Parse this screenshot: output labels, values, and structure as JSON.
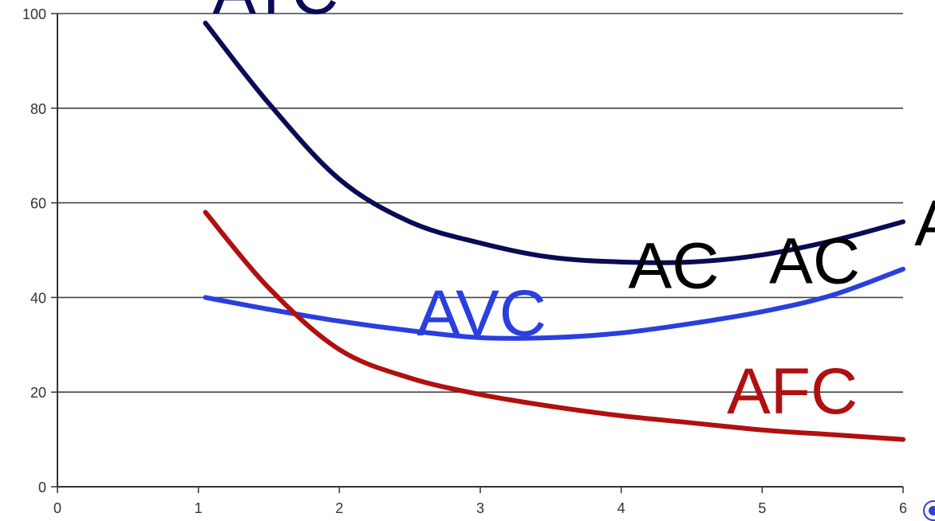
{
  "chart_data": {
    "type": "line",
    "title": "",
    "xlabel": "",
    "ylabel": "",
    "xlim": [
      0,
      6
    ],
    "ylim": [
      0,
      100
    ],
    "x_ticks": [
      "0",
      "1",
      "2",
      "3",
      "4",
      "5",
      "6"
    ],
    "y_ticks": [
      "0",
      "20",
      "40",
      "60",
      "80",
      "100"
    ],
    "grid": true,
    "series": [
      {
        "name": "ATC",
        "color": "#0a0a55",
        "x": [
          1.05,
          1.5,
          2.0,
          2.5,
          3.0,
          3.5,
          4.0,
          4.5,
          5.0,
          5.5,
          6.0
        ],
        "y": [
          98,
          81,
          65,
          56,
          51.5,
          48.5,
          47.5,
          47.5,
          49,
          52,
          56
        ]
      },
      {
        "name": "AVC",
        "color": "#2a3fdd",
        "x": [
          1.05,
          1.5,
          2.0,
          2.5,
          3.0,
          3.5,
          4.0,
          4.5,
          5.0,
          5.5,
          6.0
        ],
        "y": [
          40,
          37.5,
          35,
          33,
          31.5,
          31.5,
          32.5,
          34.5,
          37,
          40.5,
          46
        ]
      },
      {
        "name": "AFC",
        "color": "#b01010",
        "x": [
          1.05,
          1.5,
          2.0,
          2.5,
          3.0,
          3.5,
          4.0,
          4.5,
          5.0,
          5.5,
          6.0
        ],
        "y": [
          58,
          42,
          29,
          23,
          19.5,
          17,
          15,
          13.5,
          12,
          11,
          10
        ]
      }
    ],
    "annotations": [
      {
        "text": "ATC",
        "x": 1.1,
        "y": 100,
        "color": "#0a0a55"
      },
      {
        "text": "AC",
        "x": 4.05,
        "y": 42,
        "color": "#000000"
      },
      {
        "text": "AC",
        "x": 5.05,
        "y": 43,
        "color": "#000000"
      },
      {
        "text": "A",
        "x": 6.08,
        "y": 51,
        "color": "#000000"
      },
      {
        "text": "AVC",
        "x": 2.55,
        "y": 32,
        "color": "#2a3fdd"
      },
      {
        "text": "AFC",
        "x": 4.75,
        "y": 15.5,
        "color": "#b01010"
      }
    ]
  }
}
